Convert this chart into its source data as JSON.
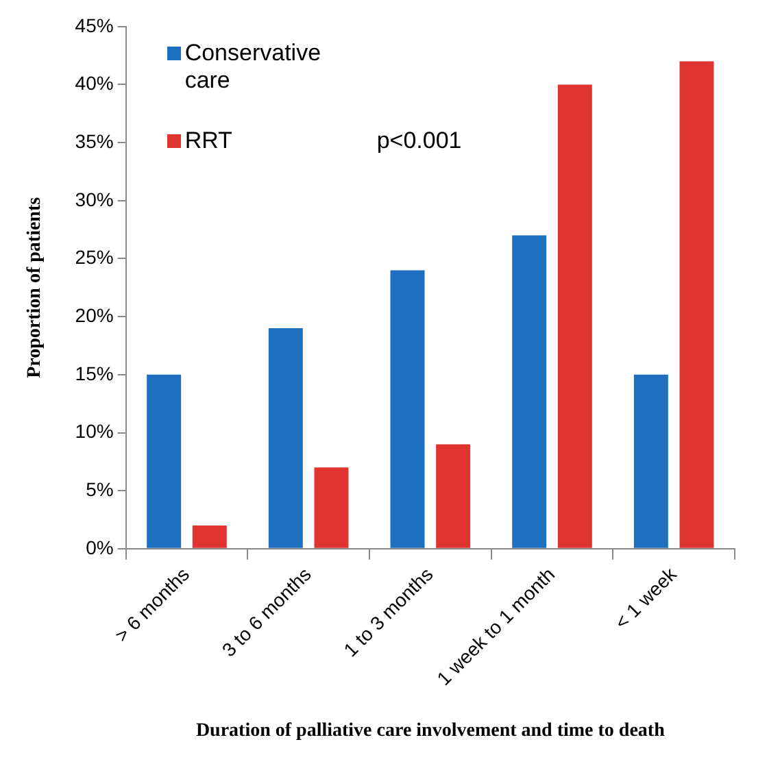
{
  "chart_data": {
    "type": "bar",
    "xlabel": "Duration of palliative care involvement and time to death",
    "ylabel": "Proportion of patients",
    "categories": [
      "> 6 months",
      "3 to 6 months",
      "1 to 3 months",
      "1 week to 1 month",
      "< 1 week"
    ],
    "series": [
      {
        "name": "Conservative care",
        "color": "#1f6fc1",
        "values": [
          15,
          19,
          24,
          27,
          15
        ]
      },
      {
        "name": "RRT",
        "color": "#e03431",
        "values": [
          2,
          7,
          9,
          40,
          42
        ]
      }
    ],
    "ylim": [
      0,
      45
    ],
    "yticks": [
      {
        "value": 0,
        "label": "0%"
      },
      {
        "value": 5,
        "label": "5%"
      },
      {
        "value": 10,
        "label": "10%"
      },
      {
        "value": 15,
        "label": "15%"
      },
      {
        "value": 20,
        "label": "20%"
      },
      {
        "value": 25,
        "label": "25%"
      },
      {
        "value": 30,
        "label": "30%"
      },
      {
        "value": 35,
        "label": "35%"
      },
      {
        "value": 40,
        "label": "40%"
      },
      {
        "value": 45,
        "label": "45%"
      }
    ],
    "annotations": [
      "p<0.001"
    ],
    "legend": "top left",
    "grid": false
  }
}
